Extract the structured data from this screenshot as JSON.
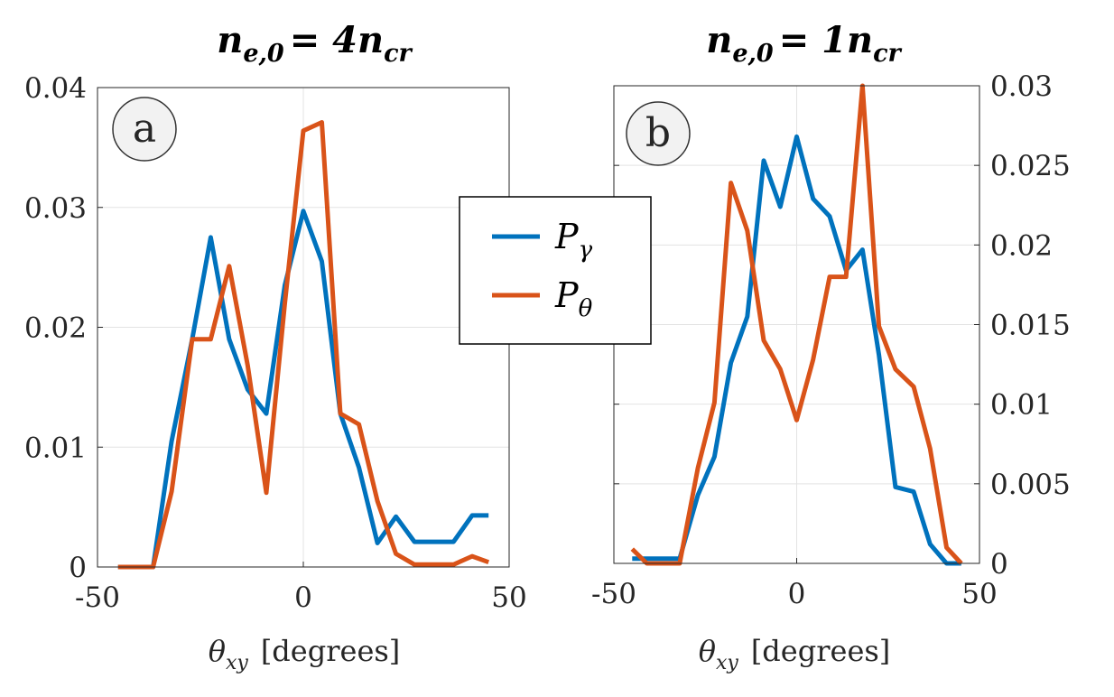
{
  "chart_data": [
    {
      "type": "line",
      "panel": "a",
      "title": "n_e,0 = 4n_cr",
      "title_parts": {
        "base": "n",
        "sub": "e,0",
        "rhs": "= 4n",
        "rhs_sub": "cr"
      },
      "xlabel": "θ_xy [degrees]",
      "xlabel_parts": {
        "sym": "θ",
        "sub": "xy",
        "unit": "[degrees]"
      },
      "xlim": [
        -50,
        50
      ],
      "ylim": [
        0,
        0.04
      ],
      "xticks": [
        -50,
        0,
        50
      ],
      "xtick_labels": [
        "-50",
        "0",
        "50"
      ],
      "yticks": [
        0,
        0.01,
        0.02,
        0.03,
        0.04
      ],
      "ytick_labels": [
        "0",
        "0.01",
        "0.02",
        "0.03",
        "0.04"
      ],
      "yaxis_side": "left",
      "grid": true,
      "series": [
        {
          "name": "P_γ",
          "color": "#0072BD",
          "x": [
            -45,
            -41,
            -36.5,
            -32,
            -27,
            -22.5,
            -18,
            -13.5,
            -9,
            -4.5,
            0,
            4.5,
            9,
            13.5,
            18,
            22.5,
            27,
            32,
            36.5,
            41,
            45
          ],
          "y": [
            0,
            0,
            0,
            0.0105,
            0.019,
            0.0275,
            0.019,
            0.0148,
            0.0128,
            0.0235,
            0.0297,
            0.0255,
            0.0128,
            0.0083,
            0.002,
            0.0042,
            0.0021,
            0.0021,
            0.0021,
            0.0043,
            0.0043
          ]
        },
        {
          "name": "P_θ",
          "color": "#D95319",
          "x": [
            -45,
            -41,
            -36.5,
            -32,
            -27,
            -22.5,
            -18,
            -13.5,
            -9,
            -4.5,
            0,
            4.5,
            9,
            13.5,
            18,
            22.5,
            27,
            32,
            36.5,
            41,
            45
          ],
          "y": [
            0,
            0,
            0,
            0.0063,
            0.019,
            0.019,
            0.0251,
            0.0168,
            0.0062,
            0.022,
            0.0364,
            0.0371,
            0.0128,
            0.0119,
            0.0055,
            0.0011,
            0.0002,
            0.0002,
            0.0002,
            0.0009,
            0.0004
          ]
        }
      ]
    },
    {
      "type": "line",
      "panel": "b",
      "title": "n_e,0 = 1n_cr",
      "title_parts": {
        "base": "n",
        "sub": "e,0",
        "rhs": "= 1n",
        "rhs_sub": "cr"
      },
      "xlabel": "θ_xy [degrees]",
      "xlabel_parts": {
        "sym": "θ",
        "sub": "xy",
        "unit": "[degrees]"
      },
      "xlim": [
        -50,
        50
      ],
      "ylim": [
        0,
        0.03
      ],
      "xticks": [
        -50,
        0,
        50
      ],
      "xtick_labels": [
        "-50",
        "0",
        "50"
      ],
      "yticks": [
        0,
        0.005,
        0.01,
        0.015,
        0.02,
        0.025,
        0.03
      ],
      "ytick_labels": [
        "0",
        "0.005",
        "0.01",
        "0.015",
        "0.02",
        "0.025",
        "0.03"
      ],
      "yaxis_side": "right",
      "grid": true,
      "series": [
        {
          "name": "P_γ",
          "color": "#0072BD",
          "x": [
            -45,
            -41,
            -36.5,
            -32,
            -27,
            -22.5,
            -18,
            -13.5,
            -9,
            -4.5,
            0,
            4.5,
            9,
            13.5,
            18,
            22.5,
            27,
            32,
            36.5,
            41,
            45
          ],
          "y": [
            0.0003,
            0.0003,
            0.0003,
            0.0003,
            0.0043,
            0.0067,
            0.0126,
            0.0155,
            0.0253,
            0.0224,
            0.0268,
            0.0229,
            0.0218,
            0.0184,
            0.0197,
            0.0131,
            0.0048,
            0.0045,
            0.0012,
            0,
            0
          ]
        },
        {
          "name": "P_θ",
          "color": "#D95319",
          "x": [
            -45,
            -41,
            -36.5,
            -32,
            -27,
            -22.5,
            -18,
            -13.5,
            -9,
            -4.5,
            0,
            4.5,
            9,
            13.5,
            18,
            22.5,
            27,
            32,
            36.5,
            41,
            45
          ],
          "y": [
            0.0009,
            0,
            0,
            0,
            0.006,
            0.0101,
            0.0239,
            0.0209,
            0.014,
            0.0122,
            0.009,
            0.0128,
            0.018,
            0.018,
            0.03,
            0.0149,
            0.0122,
            0.0111,
            0.0072,
            0.001,
            0
          ]
        }
      ]
    }
  ],
  "legend": {
    "placement": "center",
    "items": [
      {
        "letter": "P",
        "sub": "γ",
        "color": "#0072BD"
      },
      {
        "letter": "P",
        "sub": "θ",
        "color": "#D95319"
      }
    ]
  }
}
